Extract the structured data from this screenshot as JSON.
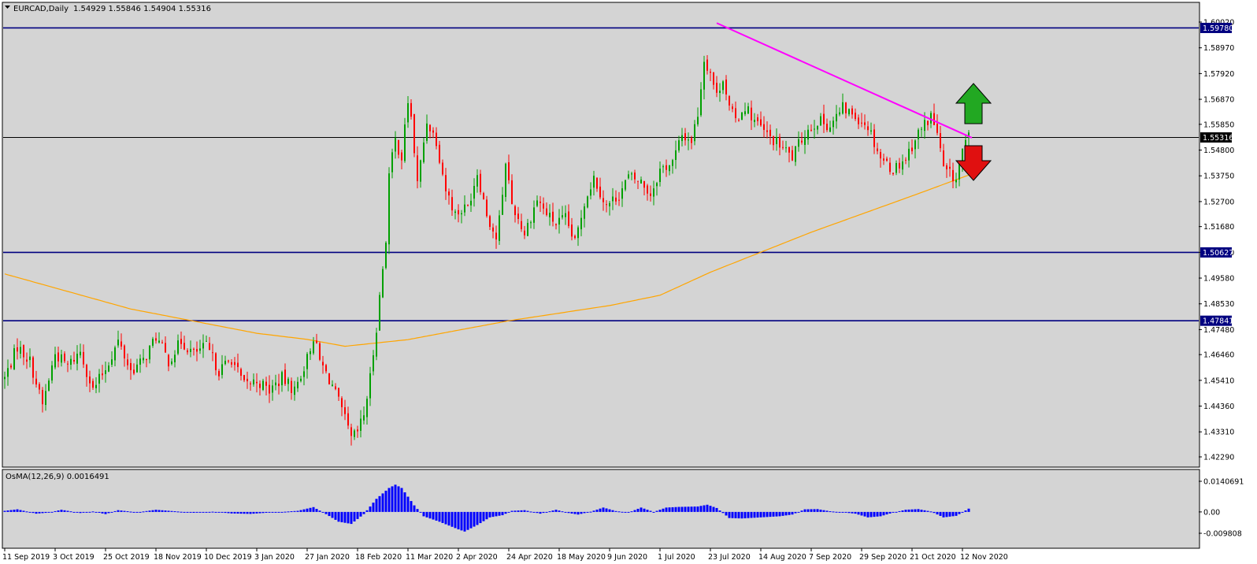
{
  "header": {
    "symbol_label": "EURCAD,Daily",
    "ohlc_label": "1.54929 1.55846 1.54904 1.55316",
    "indicator_label": "OsMA(12,26,9) 0.0016491"
  },
  "colors": {
    "background": "#d4d4d4",
    "bull": "#00a000",
    "bear": "#ff0000",
    "level_line": "#000080",
    "trend_line": "#ff00ff",
    "moving_average": "#ffa500",
    "osma_bars": "#0000ff",
    "arrow_up": "#22a822",
    "arrow_down": "#e01010"
  },
  "icons": {
    "up": "green-up-arrow-icon",
    "down": "red-down-arrow-icon",
    "menu": "dropdown-triangle-icon"
  },
  "chart_data": [
    {
      "type": "candlestick",
      "title": "EURCAD,Daily",
      "ylim": [
        1.4229,
        1.6002
      ],
      "y_ticks": [
        "1.60020",
        "1.58970",
        "1.57920",
        "1.56870",
        "1.55850",
        "1.54800",
        "1.53750",
        "1.52700",
        "1.51680",
        "1.50630",
        "1.49580",
        "1.48530",
        "1.47480",
        "1.46460",
        "1.45410",
        "1.44360",
        "1.43310",
        "1.42290"
      ],
      "x_ticks": [
        "11 Sep 2019",
        "3 Oct 2019",
        "25 Oct 2019",
        "18 Nov 2019",
        "10 Dec 2019",
        "3 Jan 2020",
        "27 Jan 2020",
        "18 Feb 2020",
        "11 Mar 2020",
        "2 Apr 2020",
        "24 Apr 2020",
        "18 May 2020",
        "9 Jun 2020",
        "1 Jul 2020",
        "23 Jul 2020",
        "14 Aug 2020",
        "7 Sep 2020",
        "29 Sep 2020",
        "21 Oct 2020",
        "12 Nov 2020"
      ],
      "x_tick_bar_index": [
        0,
        16,
        32,
        48,
        64,
        80,
        96,
        112,
        128,
        144,
        160,
        176,
        192,
        208,
        224,
        240,
        256,
        272,
        288,
        304
      ],
      "price_path": [
        [
          0,
          1.455
        ],
        [
          4,
          1.468
        ],
        [
          8,
          1.462
        ],
        [
          12,
          1.444
        ],
        [
          16,
          1.465
        ],
        [
          20,
          1.46
        ],
        [
          24,
          1.466
        ],
        [
          28,
          1.45
        ],
        [
          32,
          1.459
        ],
        [
          36,
          1.47
        ],
        [
          40,
          1.458
        ],
        [
          44,
          1.462
        ],
        [
          48,
          1.472
        ],
        [
          52,
          1.462
        ],
        [
          56,
          1.47
        ],
        [
          60,
          1.465
        ],
        [
          64,
          1.468
        ],
        [
          68,
          1.458
        ],
        [
          72,
          1.463
        ],
        [
          76,
          1.452
        ],
        [
          80,
          1.454
        ],
        [
          84,
          1.45
        ],
        [
          88,
          1.455
        ],
        [
          92,
          1.45
        ],
        [
          96,
          1.463
        ],
        [
          98,
          1.472
        ],
        [
          100,
          1.462
        ],
        [
          104,
          1.452
        ],
        [
          108,
          1.438
        ],
        [
          110,
          1.43
        ],
        [
          112,
          1.433
        ],
        [
          114,
          1.44
        ],
        [
          116,
          1.455
        ],
        [
          118,
          1.476
        ],
        [
          120,
          1.5
        ],
        [
          121,
          1.512
        ],
        [
          122,
          1.538
        ],
        [
          124,
          1.552
        ],
        [
          126,
          1.545
        ],
        [
          128,
          1.568
        ],
        [
          129,
          1.561
        ],
        [
          131,
          1.534
        ],
        [
          134,
          1.56
        ],
        [
          137,
          1.552
        ],
        [
          140,
          1.532
        ],
        [
          143,
          1.522
        ],
        [
          147,
          1.525
        ],
        [
          150,
          1.539
        ],
        [
          153,
          1.522
        ],
        [
          156,
          1.512
        ],
        [
          158,
          1.528
        ],
        [
          159,
          1.544
        ],
        [
          161,
          1.526
        ],
        [
          165,
          1.514
        ],
        [
          169,
          1.528
        ],
        [
          172,
          1.522
        ],
        [
          175,
          1.518
        ],
        [
          178,
          1.52
        ],
        [
          181,
          1.51
        ],
        [
          184,
          1.527
        ],
        [
          187,
          1.537
        ],
        [
          191,
          1.525
        ],
        [
          195,
          1.53
        ],
        [
          198,
          1.537
        ],
        [
          202,
          1.535
        ],
        [
          205,
          1.53
        ],
        [
          208,
          1.54
        ],
        [
          212,
          1.543
        ],
        [
          215,
          1.554
        ],
        [
          218,
          1.552
        ],
        [
          220,
          1.563
        ],
        [
          222,
          1.585
        ],
        [
          224,
          1.58
        ],
        [
          226,
          1.57
        ],
        [
          228,
          1.578
        ],
        [
          230,
          1.565
        ],
        [
          232,
          1.56
        ],
        [
          235,
          1.566
        ],
        [
          238,
          1.56
        ],
        [
          242,
          1.554
        ],
        [
          246,
          1.55
        ],
        [
          250,
          1.545
        ],
        [
          254,
          1.555
        ],
        [
          258,
          1.56
        ],
        [
          262,
          1.558
        ],
        [
          266,
          1.565
        ],
        [
          270,
          1.562
        ],
        [
          274,
          1.558
        ],
        [
          278,
          1.545
        ],
        [
          282,
          1.54
        ],
        [
          286,
          1.545
        ],
        [
          290,
          1.555
        ],
        [
          294,
          1.562
        ],
        [
          296,
          1.555
        ],
        [
          298,
          1.54
        ],
        [
          300,
          1.538
        ],
        [
          302,
          1.536
        ],
        [
          304,
          1.548
        ],
        [
          306,
          1.553
        ]
      ],
      "sma_path": [
        [
          0,
          1.4975
        ],
        [
          40,
          1.4832
        ],
        [
          80,
          1.4733
        ],
        [
          96,
          1.4708
        ],
        [
          108,
          1.468
        ],
        [
          128,
          1.4707
        ],
        [
          160,
          1.4784
        ],
        [
          192,
          1.4846
        ],
        [
          208,
          1.4888
        ],
        [
          224,
          1.4982
        ],
        [
          256,
          1.5145
        ],
        [
          288,
          1.5293
        ],
        [
          306,
          1.5378
        ]
      ],
      "levels": [
        {
          "value": 1.5978,
          "label": "1.59780"
        },
        {
          "value": 1.55316,
          "label": "1.55316"
        },
        {
          "value": 1.50627,
          "label": "1.50627"
        },
        {
          "value": 1.47841,
          "label": "1.47841"
        }
      ],
      "trend_line": [
        [
          226,
          1.5998
        ],
        [
          307,
          1.553
        ]
      ],
      "series": [
        {
          "name": "EURCAD,Daily",
          "style": "candles"
        }
      ]
    },
    {
      "type": "bar",
      "title": "OsMA(12,26,9) 0.0016491",
      "ylim": [
        -0.009808,
        0.014069
      ],
      "y_ticks": [
        "0.0140691",
        "0.00",
        "-0.009808"
      ],
      "osma_path": [
        [
          0,
          0.0005
        ],
        [
          4,
          0.0012
        ],
        [
          10,
          -0.0008
        ],
        [
          14,
          -0.0003
        ],
        [
          18,
          0.001
        ],
        [
          24,
          -0.0005
        ],
        [
          28,
          0.0002
        ],
        [
          32,
          -0.001
        ],
        [
          36,
          0.0008
        ],
        [
          42,
          -0.0002
        ],
        [
          48,
          0.001
        ],
        [
          54,
          0.0003
        ],
        [
          60,
          -0.0004
        ],
        [
          66,
          0.0001
        ],
        [
          72,
          -0.0007
        ],
        [
          78,
          -0.0009
        ],
        [
          84,
          -0.0003
        ],
        [
          88,
          0.0
        ],
        [
          93,
          0.0005
        ],
        [
          98,
          0.0022
        ],
        [
          102,
          -0.001
        ],
        [
          106,
          -0.0045
        ],
        [
          110,
          -0.0055
        ],
        [
          114,
          -0.001
        ],
        [
          118,
          0.006
        ],
        [
          122,
          0.011
        ],
        [
          124,
          0.0125
        ],
        [
          126,
          0.011
        ],
        [
          130,
          0.003
        ],
        [
          133,
          -0.002
        ],
        [
          138,
          -0.0045
        ],
        [
          144,
          -0.008
        ],
        [
          146,
          -0.009
        ],
        [
          150,
          -0.006
        ],
        [
          154,
          -0.0025
        ],
        [
          158,
          -0.0015
        ],
        [
          161,
          0.0005
        ],
        [
          165,
          0.0008
        ],
        [
          170,
          -0.0008
        ],
        [
          175,
          0.001
        ],
        [
          179,
          -0.0005
        ],
        [
          182,
          -0.0012
        ],
        [
          186,
          0.0001
        ],
        [
          190,
          0.002
        ],
        [
          194,
          0.0004
        ],
        [
          198,
          -0.0003
        ],
        [
          202,
          0.002
        ],
        [
          206,
          0.0
        ],
        [
          210,
          0.002
        ],
        [
          214,
          0.0023
        ],
        [
          220,
          0.0025
        ],
        [
          223,
          0.0033
        ],
        [
          226,
          0.0018
        ],
        [
          230,
          -0.0028
        ],
        [
          234,
          -0.003
        ],
        [
          240,
          -0.0025
        ],
        [
          246,
          -0.002
        ],
        [
          250,
          -0.0012
        ],
        [
          254,
          0.0012
        ],
        [
          258,
          0.0013
        ],
        [
          262,
          0.0003
        ],
        [
          266,
          -0.0002
        ],
        [
          270,
          -0.0008
        ],
        [
          274,
          -0.0025
        ],
        [
          278,
          -0.002
        ],
        [
          282,
          -0.0003
        ],
        [
          286,
          0.001
        ],
        [
          290,
          0.0013
        ],
        [
          294,
          0.0002
        ],
        [
          298,
          -0.0025
        ],
        [
          302,
          -0.0018
        ],
        [
          306,
          0.0015
        ]
      ]
    }
  ]
}
